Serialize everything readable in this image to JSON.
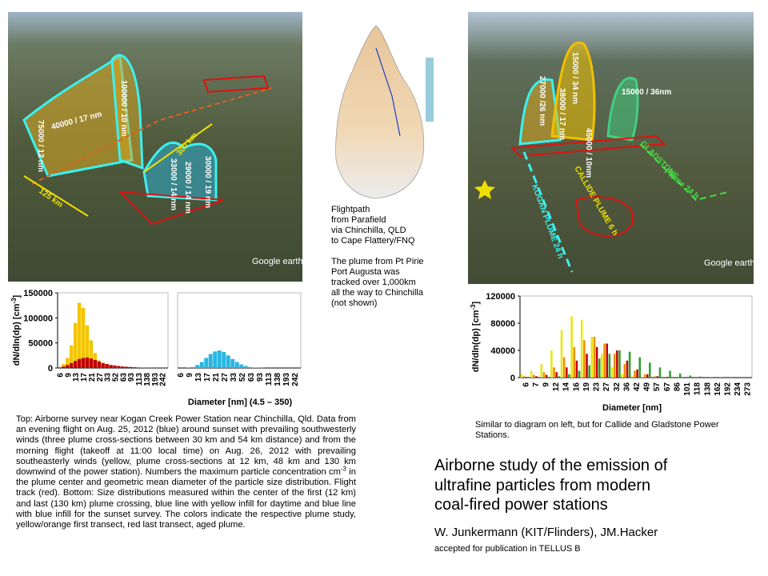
{
  "left_photo": {
    "labels": [
      "75000 / 12 nm",
      "40000 / 17 nm",
      "100000 / 10 nm",
      "30000 / 19 nm",
      "29000 / 14 nm",
      "33000 / 14 nm",
      "300 km",
      "125 km"
    ],
    "watermark": "Google earth"
  },
  "right_photo": {
    "labels": [
      "27000 /26 nm",
      "15000 / 34 nm",
      "38000 / 17 nm",
      "45000 / 10nm",
      "15000 / 36nm",
      "GLADSTONE",
      "CALLIDE PLUME 6 h",
      "KOGAN PLUME 24 h",
      "Plume 24 h"
    ],
    "watermark": "Google earth"
  },
  "flight_caption": "Flightpath\nfrom Parafield\nvia Chinchilla, QLD\nto Cape Flattery/FNQ\n\nThe plume from Pt Pirie\nPort Augusta was\ntracked over  1,000km\nall the way to Chinchilla\n(not shown)",
  "left_caption": {
    "before": "Top: Airborne survey near Kogan Creek Power Station near Chinchilla, Qld. Data from an evening flight on Aug. 25, 2012 (blue) around sunset with prevailing southwesterly winds (three plume cross-sections between 30 km and 54 km distance) and from the morning flight (takeoff at 11:00 local time) on Aug. 26, 2012 with prevailing southeasterly winds (yellow, plume cross-sections at 12 km, 48 km and 130 km downwind of the power station). Numbers the maximum particle concentration cm",
    "sup": "-3",
    "after": " in the plume center and geometric mean diameter of the particle size distribution. Flight track (red). Bottom: Size distributions measured within the center of the first (12 km) and last (130 km) plume crossing, blue line with yellow infill for daytime and blue line with blue infill for the sunset survey. The colors indicate the respective plume study, yellow/orange first transect, red last transect, aged plume."
  },
  "right_caption": "Similar to diagram on left, but for Callide and Gladstone Power Stations.",
  "title": "Airborne study of the emission of\nultrafine particles from modern\ncoal-fired power stations",
  "authors": "W. Junkermann (KIT/Flinders), JM.Hacker",
  "accepted": "accepted for publication in TELLUS B",
  "chart_data": [
    {
      "type": "bar",
      "barmode": "overlay",
      "y_label": {
        "text": "dN/dln(dp) [cm",
        "sup": "-3",
        "end": "]"
      },
      "x_label": "Diameter [nm] (4.5 – 350)",
      "categories": [
        "6",
        null,
        "9",
        null,
        "13",
        null,
        "17",
        null,
        "21",
        null,
        "27",
        null,
        "33",
        null,
        "52",
        null,
        "63",
        null,
        "93",
        null,
        "113",
        null,
        "138",
        null,
        "193",
        null,
        "242",
        null
      ],
      "ylim": [
        0,
        150000
      ],
      "yticks": [
        0,
        50000,
        100000,
        150000
      ],
      "panels": [
        {
          "series": [
            {
              "color": "#f2c500",
              "values": [
                2000,
                8000,
                20000,
                45000,
                90000,
                130000,
                120000,
                85000,
                55000,
                30000,
                15000,
                8000,
                4000,
                2000,
                1000,
                500,
                300,
                200,
                100,
                100,
                0,
                0,
                0,
                0,
                0,
                0,
                0,
                0
              ]
            },
            {
              "color": "#c00000",
              "values": [
                1000,
                3000,
                6000,
                10000,
                14000,
                18000,
                20000,
                21000,
                19000,
                16000,
                13000,
                10000,
                8000,
                6000,
                5000,
                4000,
                3000,
                2500,
                2000,
                1500,
                1000,
                800,
                600,
                400,
                300,
                200,
                100,
                100
              ]
            }
          ]
        },
        {
          "series": [
            {
              "color": "#29b6e0",
              "values": [
                0,
                0,
                500,
                2000,
                6000,
                12000,
                20000,
                28000,
                33000,
                35000,
                32000,
                25000,
                18000,
                12000,
                7000,
                4000,
                2000,
                1000,
                500,
                300,
                0,
                0,
                0,
                0,
                0,
                0,
                0,
                0
              ]
            }
          ]
        }
      ]
    },
    {
      "type": "bar",
      "barmode": "group",
      "y_label": {
        "text": "dN/dln(dp) [cm",
        "sup": "-3",
        "end": "]"
      },
      "x_label": "Diameter [nm]",
      "categories": [
        "6",
        "7",
        "9",
        "12",
        "14",
        "16",
        "19",
        "23",
        "27",
        "32",
        "36",
        "42",
        "49",
        "57",
        "67",
        "86",
        "101",
        "118",
        "138",
        "162",
        "192",
        "234",
        "273"
      ],
      "ylim": [
        0,
        120000
      ],
      "yticks": [
        0,
        40000,
        80000,
        120000
      ],
      "series": [
        {
          "color": "#e8e800",
          "values": [
            5000,
            10000,
            20000,
            40000,
            70000,
            90000,
            85000,
            60000,
            35000,
            15000,
            5000,
            2000,
            1000,
            0,
            0,
            0,
            0,
            0,
            0,
            0,
            0,
            0,
            0
          ]
        },
        {
          "color": "#f08c00",
          "values": [
            2000,
            4000,
            8000,
            15000,
            30000,
            45000,
            55000,
            60000,
            50000,
            35000,
            20000,
            10000,
            5000,
            2000,
            0,
            0,
            0,
            0,
            0,
            0,
            0,
            0,
            0
          ]
        },
        {
          "color": "#c00000",
          "values": [
            1000,
            2000,
            4000,
            8000,
            15000,
            25000,
            35000,
            45000,
            50000,
            40000,
            25000,
            12000,
            5000,
            2000,
            1000,
            0,
            0,
            0,
            0,
            0,
            0,
            0,
            0
          ]
        },
        {
          "color": "#2e9e2e",
          "values": [
            0,
            0,
            1000,
            2000,
            5000,
            10000,
            18000,
            28000,
            35000,
            40000,
            38000,
            30000,
            22000,
            15000,
            10000,
            6000,
            3000,
            1500,
            800,
            400,
            200,
            100,
            0
          ]
        }
      ]
    }
  ]
}
